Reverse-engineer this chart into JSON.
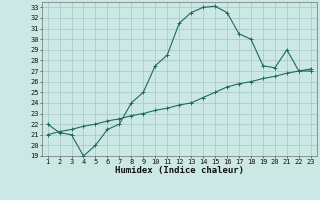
{
  "xlabel": "Humidex (Indice chaleur)",
  "background_color": "#cce8e4",
  "grid_color": "#aaccca",
  "line_color": "#1a6b5e",
  "curve1_x": [
    1,
    2,
    3,
    4,
    5,
    6,
    7,
    8,
    9,
    10,
    11,
    12,
    13,
    14,
    15,
    16,
    17,
    18,
    19,
    20,
    21,
    22,
    23
  ],
  "curve1_y": [
    22.0,
    21.2,
    21.0,
    19.0,
    20.0,
    21.5,
    22.0,
    24.0,
    25.0,
    27.5,
    28.5,
    31.5,
    32.5,
    33.0,
    33.1,
    32.5,
    30.5,
    30.0,
    27.5,
    27.3,
    29.0,
    27.0,
    27.0
  ],
  "curve2_x": [
    1,
    2,
    3,
    4,
    5,
    6,
    7,
    8,
    9,
    10,
    11,
    12,
    13,
    14,
    15,
    16,
    17,
    18,
    19,
    20,
    21,
    22,
    23
  ],
  "curve2_y": [
    21.0,
    21.3,
    21.5,
    21.8,
    22.0,
    22.3,
    22.5,
    22.8,
    23.0,
    23.3,
    23.5,
    23.8,
    24.0,
    24.5,
    25.0,
    25.5,
    25.8,
    26.0,
    26.3,
    26.5,
    26.8,
    27.0,
    27.2
  ],
  "xlim": [
    0.5,
    23.5
  ],
  "ylim": [
    19,
    33.5
  ],
  "yticks": [
    19,
    20,
    21,
    22,
    23,
    24,
    25,
    26,
    27,
    28,
    29,
    30,
    31,
    32,
    33
  ],
  "xticks": [
    1,
    2,
    3,
    4,
    5,
    6,
    7,
    8,
    9,
    10,
    11,
    12,
    13,
    14,
    15,
    16,
    17,
    18,
    19,
    20,
    21,
    22,
    23
  ],
  "tick_fontsize": 5.0,
  "xlabel_fontsize": 6.5,
  "marker": "+",
  "linewidth": 0.8,
  "markersize": 3.0,
  "markeredgewidth": 0.7
}
